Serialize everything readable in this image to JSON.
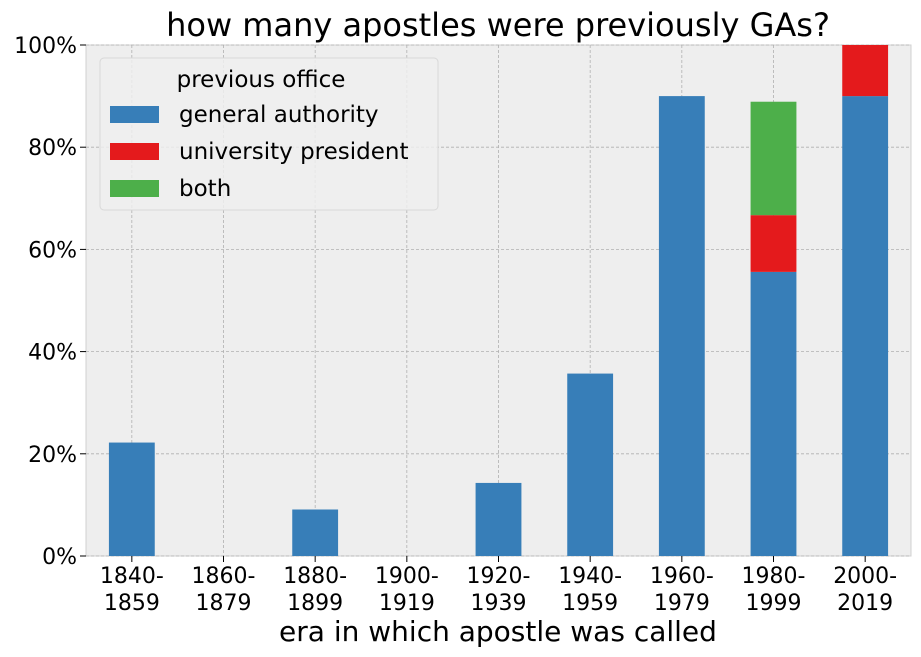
{
  "chart_data": {
    "type": "bar",
    "stacked": true,
    "title": "how many apostles were previously GAs?",
    "xlabel": "era in which apostle was called",
    "ylabel": "",
    "categories": [
      [
        "1840-",
        "1859"
      ],
      [
        "1860-",
        "1879"
      ],
      [
        "1880-",
        "1899"
      ],
      [
        "1900-",
        "1919"
      ],
      [
        "1920-",
        "1939"
      ],
      [
        "1940-",
        "1959"
      ],
      [
        "1960-",
        "1979"
      ],
      [
        "1980-",
        "1999"
      ],
      [
        "2000-",
        "2019"
      ]
    ],
    "series": [
      {
        "name": "general authority",
        "color": "#377eb8",
        "values": [
          22.2,
          0,
          9.1,
          0,
          14.3,
          35.7,
          90.0,
          55.6,
          90.0
        ]
      },
      {
        "name": "university president",
        "color": "#e41a1c",
        "values": [
          0,
          0,
          0,
          0,
          0,
          0,
          0,
          11.1,
          10.0
        ]
      },
      {
        "name": "both",
        "color": "#4daf4a",
        "values": [
          0,
          0,
          0,
          0,
          0,
          0,
          0,
          22.2,
          0
        ]
      }
    ],
    "ylim": [
      0,
      100
    ],
    "yticks": [
      "0%",
      "20%",
      "40%",
      "60%",
      "80%",
      "100%"
    ],
    "ytick_values": [
      0,
      20,
      40,
      60,
      80,
      100
    ],
    "legend": {
      "title": "previous office",
      "placement": "top-left"
    },
    "grid": true,
    "background": "#eeeeee"
  }
}
